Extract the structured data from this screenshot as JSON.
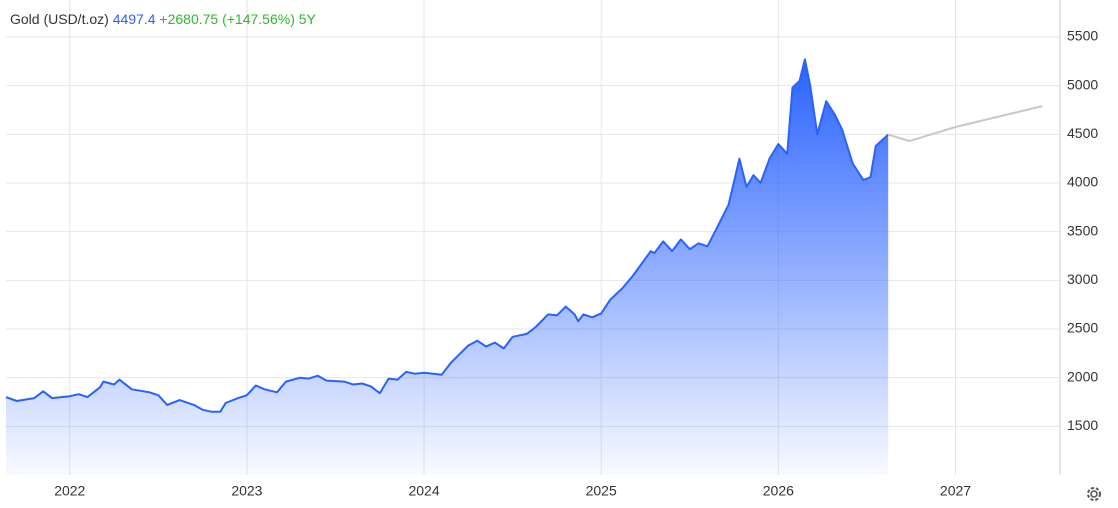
{
  "chart_data": {
    "type": "area",
    "title": "Gold (USD/t.oz)",
    "last_value": 4497.4,
    "change": "+2680.75 (+147.56%)",
    "period": "5Y",
    "xlim": [
      2021.64,
      2027.59
    ],
    "ylim": [
      1000,
      5880
    ],
    "xticks": [
      2022,
      2023,
      2024,
      2025,
      2026,
      2027
    ],
    "yticks": [
      1500,
      2000,
      2500,
      3000,
      3500,
      4000,
      4500,
      5000,
      5500
    ],
    "grid": true,
    "series": [
      {
        "color": "#2962ff",
        "x": [
          2021.64,
          2021.7,
          2021.8,
          2021.85,
          2021.9,
          2022.0,
          2022.05,
          2022.1,
          2022.17,
          2022.19,
          2022.25,
          2022.28,
          2022.35,
          2022.45,
          2022.5,
          2022.55,
          2022.62,
          2022.7,
          2022.75,
          2022.8,
          2022.85,
          2022.88,
          2022.95,
          2023.0,
          2023.05,
          2023.1,
          2023.17,
          2023.22,
          2023.3,
          2023.35,
          2023.4,
          2023.45,
          2023.55,
          2023.6,
          2023.65,
          2023.7,
          2023.75,
          2023.8,
          2023.85,
          2023.9,
          2023.95,
          2024.0,
          2024.1,
          2024.15,
          2024.25,
          2024.3,
          2024.35,
          2024.4,
          2024.45,
          2024.5,
          2024.58,
          2024.63,
          2024.7,
          2024.75,
          2024.8,
          2024.85,
          2024.87,
          2024.9,
          2024.95,
          2025.0,
          2025.05,
          2025.12,
          2025.18,
          2025.28,
          2025.3,
          2025.35,
          2025.4,
          2025.45,
          2025.5,
          2025.55,
          2025.6,
          2025.67,
          2025.72,
          2025.78,
          2025.82,
          2025.86,
          2025.9,
          2025.95,
          2026.0,
          2026.05,
          2026.08,
          2026.12,
          2026.15,
          2026.18,
          2026.22,
          2026.27,
          2026.32,
          2026.36,
          2026.42,
          2026.48,
          2026.52,
          2026.55,
          2026.62
        ],
        "values": [
          1800,
          1760,
          1790,
          1860,
          1790,
          1810,
          1830,
          1800,
          1900,
          1960,
          1930,
          1980,
          1880,
          1850,
          1820,
          1720,
          1770,
          1720,
          1670,
          1650,
          1650,
          1740,
          1790,
          1820,
          1920,
          1880,
          1850,
          1960,
          2000,
          1990,
          2020,
          1970,
          1960,
          1930,
          1940,
          1910,
          1840,
          1990,
          1980,
          2060,
          2040,
          2050,
          2030,
          2150,
          2330,
          2380,
          2320,
          2360,
          2300,
          2420,
          2450,
          2520,
          2650,
          2640,
          2730,
          2650,
          2580,
          2650,
          2620,
          2660,
          2800,
          2920,
          3050,
          3300,
          3280,
          3400,
          3300,
          3420,
          3320,
          3380,
          3350,
          3600,
          3780,
          4250,
          3960,
          4080,
          4000,
          4250,
          4400,
          4300,
          4980,
          5050,
          5270,
          5000,
          4500,
          4840,
          4700,
          4550,
          4200,
          4030,
          4060,
          4380,
          4497.4
        ]
      },
      {
        "color": "#c8c8c8",
        "x": [
          2026.62,
          2026.74,
          2027.0,
          2027.49
        ],
        "values": [
          4497.4,
          4430,
          4575,
          4790
        ]
      }
    ]
  }
}
